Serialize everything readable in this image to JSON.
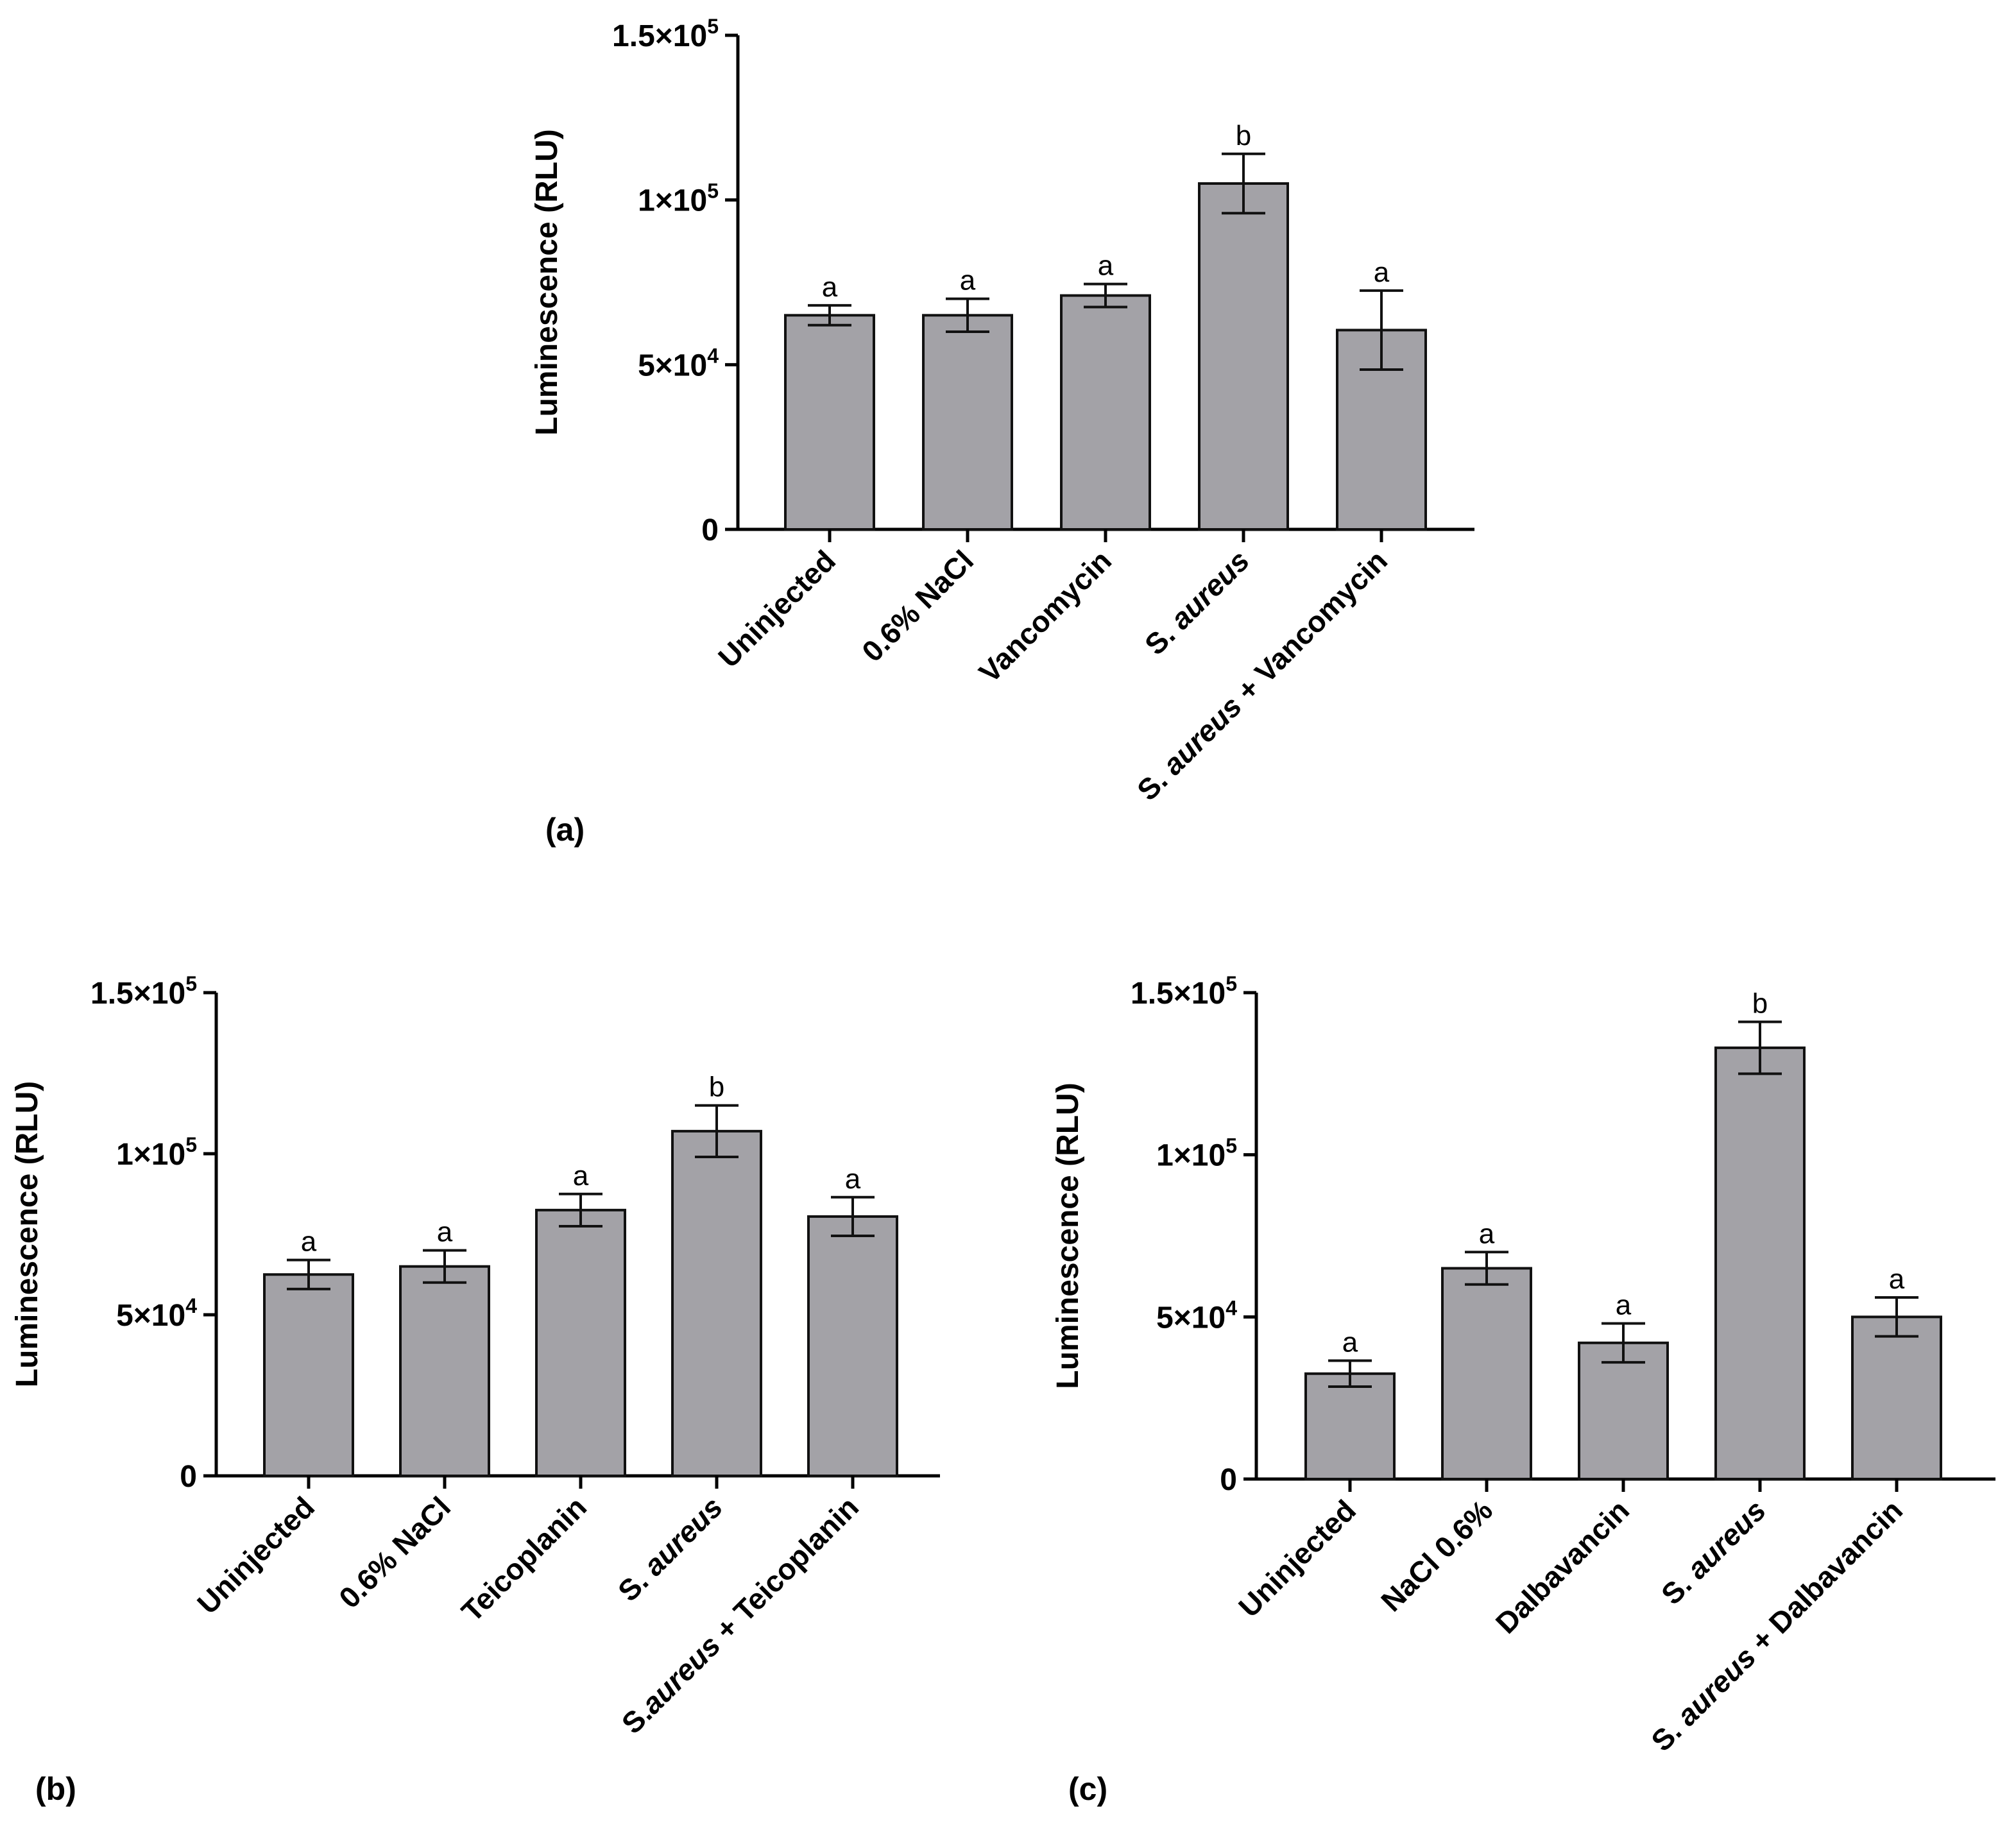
{
  "chart_data": [
    {
      "panel": "(a)",
      "type": "bar",
      "ylabel": "Luminescence (RLU)",
      "ylim": [
        0,
        150000
      ],
      "yticks": [
        0,
        50000,
        100000,
        150000
      ],
      "ytick_labels": [
        "0",
        "5×10⁴",
        "1×10⁵",
        "1.5×10⁵"
      ],
      "categories": [
        "Uninjected",
        "0.6% NaCl",
        "Vancomycin",
        "S. aureus",
        "S. aureus + Vancomycin"
      ],
      "values": [
        65000,
        65000,
        71000,
        105000,
        60500
      ],
      "errors": [
        3000,
        5000,
        3500,
        9000,
        12000
      ],
      "letters": [
        "a",
        "a",
        "a",
        "b",
        "a"
      ],
      "bar_color": "#a3a2a7"
    },
    {
      "panel": "(b)",
      "type": "bar",
      "ylabel": "Luminescence (RLU)",
      "ylim": [
        0,
        150000
      ],
      "yticks": [
        0,
        50000,
        100000,
        150000
      ],
      "ytick_labels": [
        "0",
        "5×10⁴",
        "1×10⁵",
        "1.5×10⁵"
      ],
      "categories": [
        "Uninjected",
        "0.6% NaCl",
        "Teicoplanin",
        "S. aureus",
        "S.aureus + Teicoplanin"
      ],
      "values": [
        62500,
        65000,
        82500,
        107000,
        80500
      ],
      "errors": [
        4500,
        5000,
        5000,
        8000,
        6000
      ],
      "letters": [
        "a",
        "a",
        "a",
        "b",
        "a"
      ],
      "bar_color": "#a3a2a7"
    },
    {
      "panel": "(c)",
      "type": "bar",
      "ylabel": "Luminescence (RLU)",
      "ylim": [
        0,
        150000
      ],
      "yticks": [
        0,
        50000,
        100000,
        150000
      ],
      "ytick_labels": [
        "0",
        "5×10⁴",
        "1×10⁵",
        "1.5×10⁵"
      ],
      "categories": [
        "Uninjected",
        "NaCl 0.6%",
        "Dalbavancin",
        "S. aureus",
        "S. aureus + Dalbavancin"
      ],
      "values": [
        32500,
        65000,
        42000,
        133000,
        50000
      ],
      "errors": [
        4000,
        5000,
        6000,
        8000,
        6000
      ],
      "letters": [
        "a",
        "a",
        "a",
        "b",
        "a"
      ],
      "bar_color": "#a3a2a7"
    }
  ]
}
